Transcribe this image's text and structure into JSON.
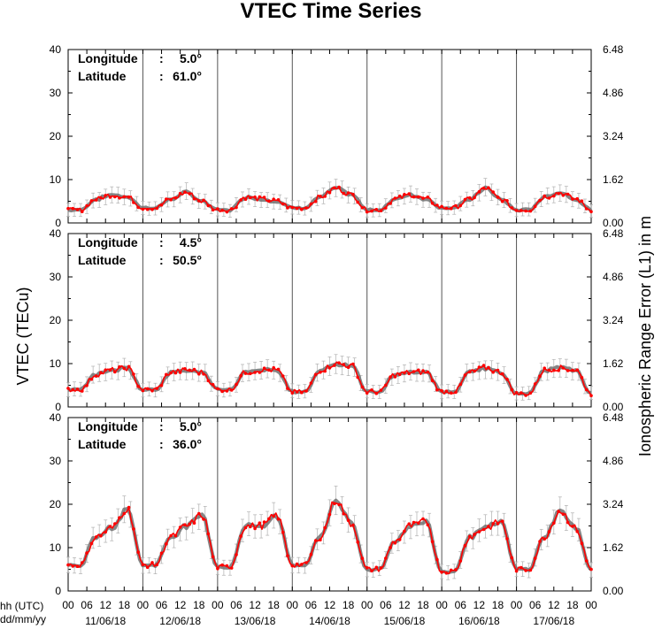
{
  "chart_data": {
    "type": "line",
    "title": "VTEC Time Series",
    "ylabel": "VTEC (TECu)",
    "ylabel_right": "Ionospheric Range Error (L1) in m",
    "xlabel_lines": [
      "hh (UTC)",
      "dd/mm/yy"
    ],
    "hour_ticks": [
      "00",
      "06",
      "12",
      "18",
      "00",
      "06",
      "12",
      "18",
      "00",
      "06",
      "12",
      "18",
      "00",
      "06",
      "12",
      "18",
      "00",
      "06",
      "12",
      "18",
      "00",
      "06",
      "12",
      "18",
      "00",
      "06",
      "12",
      "18",
      "00"
    ],
    "dates": [
      "11/06/18",
      "12/06/18",
      "13/06/18",
      "14/06/18",
      "15/06/18",
      "16/06/18",
      "17/06/18"
    ],
    "x_range_hours": [
      0,
      168
    ],
    "ylim": [
      0,
      40
    ],
    "y_ticks": [
      "0",
      "10",
      "20",
      "30",
      "40"
    ],
    "right_ticks": [
      "0.00",
      "1.62",
      "3.24",
      "4.86",
      "6.48"
    ],
    "series_colors": {
      "measured": "#ff0000",
      "reference": "#707070"
    },
    "info_labels": {
      "longitude": "Longitude",
      "latitude": "Latitude"
    },
    "panels": [
      {
        "longitude": "5.0°",
        "latitude": "61.0°",
        "daily": [
          {
            "night": 3.0,
            "morning": 5.5,
            "noon": 6.5,
            "evening": 6.0
          },
          {
            "night": 3.5,
            "morning": 5.5,
            "noon": 7.0,
            "evening": 5.0
          },
          {
            "night": 3.0,
            "morning": 6.0,
            "noon": 5.5,
            "evening": 5.0
          },
          {
            "night": 3.5,
            "morning": 6.0,
            "noon": 8.0,
            "evening": 6.5
          },
          {
            "night": 3.0,
            "morning": 5.5,
            "noon": 6.5,
            "evening": 5.5
          },
          {
            "night": 3.5,
            "morning": 5.5,
            "noon": 8.0,
            "evening": 5.5
          },
          {
            "night": 3.0,
            "morning": 6.0,
            "noon": 7.0,
            "evening": 5.5
          }
        ]
      },
      {
        "longitude": "4.5°",
        "latitude": "50.5°",
        "daily": [
          {
            "night": 4.0,
            "morning": 7.5,
            "noon": 8.5,
            "evening": 9.0
          },
          {
            "night": 4.0,
            "morning": 8.0,
            "noon": 8.5,
            "evening": 8.0
          },
          {
            "night": 4.0,
            "morning": 8.0,
            "noon": 8.5,
            "evening": 8.5
          },
          {
            "night": 3.5,
            "morning": 8.5,
            "noon": 10.0,
            "evening": 9.5
          },
          {
            "night": 3.5,
            "morning": 7.5,
            "noon": 8.0,
            "evening": 8.0
          },
          {
            "night": 3.5,
            "morning": 8.0,
            "noon": 9.0,
            "evening": 8.0
          },
          {
            "night": 3.0,
            "morning": 8.5,
            "noon": 9.0,
            "evening": 8.5
          }
        ]
      },
      {
        "longitude": "5.0°",
        "latitude": "36.0°",
        "daily": [
          {
            "night": 6.0,
            "morning": 12.5,
            "noon": 14.5,
            "evening": 19.0
          },
          {
            "night": 6.0,
            "morning": 12.5,
            "noon": 15.0,
            "evening": 17.5
          },
          {
            "night": 5.5,
            "morning": 15.0,
            "noon": 15.0,
            "evening": 17.5
          },
          {
            "night": 6.0,
            "morning": 12.5,
            "noon": 21.0,
            "evening": 15.5
          },
          {
            "night": 5.0,
            "morning": 11.5,
            "noon": 15.0,
            "evening": 16.0
          },
          {
            "night": 4.5,
            "morning": 12.5,
            "noon": 14.5,
            "evening": 16.0
          },
          {
            "night": 5.0,
            "morning": 12.5,
            "noon": 18.5,
            "evening": 14.5
          }
        ]
      }
    ]
  }
}
